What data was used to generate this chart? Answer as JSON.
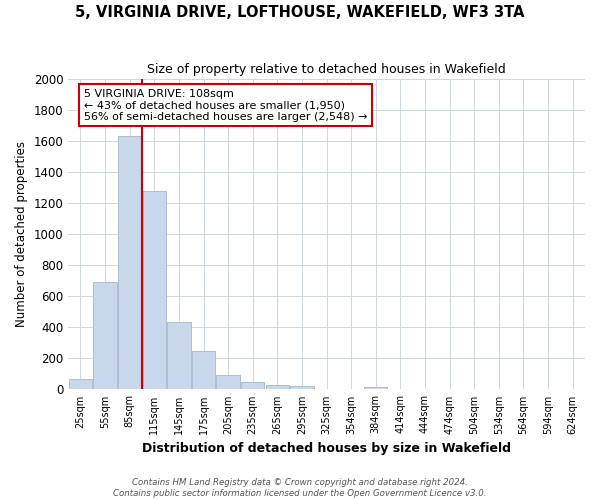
{
  "title": "5, VIRGINIA DRIVE, LOFTHOUSE, WAKEFIELD, WF3 3TA",
  "subtitle": "Size of property relative to detached houses in Wakefield",
  "xlabel": "Distribution of detached houses by size in Wakefield",
  "ylabel": "Number of detached properties",
  "bar_labels": [
    "25sqm",
    "55sqm",
    "85sqm",
    "115sqm",
    "145sqm",
    "175sqm",
    "205sqm",
    "235sqm",
    "265sqm",
    "295sqm",
    "325sqm",
    "354sqm",
    "384sqm",
    "414sqm",
    "444sqm",
    "474sqm",
    "504sqm",
    "534sqm",
    "564sqm",
    "594sqm",
    "624sqm"
  ],
  "bar_values": [
    65,
    695,
    1635,
    1280,
    435,
    250,
    90,
    50,
    30,
    20,
    0,
    0,
    15,
    0,
    0,
    0,
    0,
    0,
    0,
    0,
    0
  ],
  "bar_color": "#c8d8ea",
  "bar_edge_color": "#aabfd0",
  "grid_color": "#d0d8e0",
  "background_color": "#ffffff",
  "vline_x": 2.5,
  "vline_color": "#cc0000",
  "ylim": [
    0,
    2000
  ],
  "yticks": [
    0,
    200,
    400,
    600,
    800,
    1000,
    1200,
    1400,
    1600,
    1800,
    2000
  ],
  "annotation_title": "5 VIRGINIA DRIVE: 108sqm",
  "annotation_line1": "← 43% of detached houses are smaller (1,950)",
  "annotation_line2": "56% of semi-detached houses are larger (2,548) →",
  "annotation_box_color": "#ffffff",
  "annotation_box_edge": "#cc0000",
  "footnote1": "Contains HM Land Registry data © Crown copyright and database right 2024.",
  "footnote2": "Contains public sector information licensed under the Open Government Licence v3.0."
}
